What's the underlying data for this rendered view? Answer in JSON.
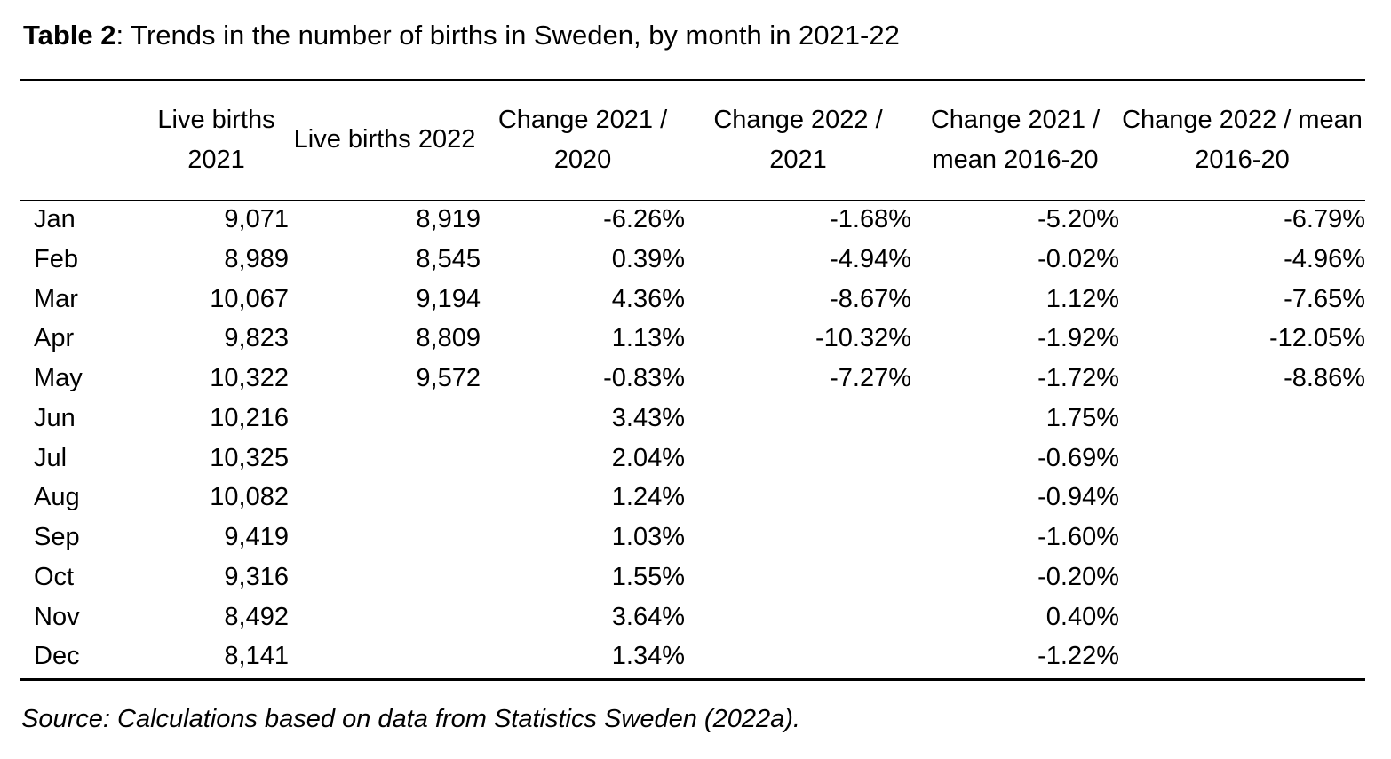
{
  "caption": {
    "label": "Table 2",
    "text": ": Trends in the number of births in Sweden, by month in 2021-22"
  },
  "table": {
    "headers": [
      "",
      "Live births 2021",
      "Live births 2022",
      "Change 2021 / 2020",
      "Change 2022 / 2021",
      "Change 2021 / mean 2016-20",
      "Change 2022 / mean 2016-20"
    ],
    "rows": [
      {
        "month": "Jan",
        "births_2021": "9,071",
        "births_2022": "8,919",
        "change_2021_2020": "-6.26%",
        "change_2022_2021": "-1.68%",
        "change_2021_mean": "-5.20%",
        "change_2022_mean": "-6.79%"
      },
      {
        "month": "Feb",
        "births_2021": "8,989",
        "births_2022": "8,545",
        "change_2021_2020": "0.39%",
        "change_2022_2021": "-4.94%",
        "change_2021_mean": "-0.02%",
        "change_2022_mean": "-4.96%"
      },
      {
        "month": "Mar",
        "births_2021": "10,067",
        "births_2022": "9,194",
        "change_2021_2020": "4.36%",
        "change_2022_2021": "-8.67%",
        "change_2021_mean": "1.12%",
        "change_2022_mean": "-7.65%"
      },
      {
        "month": "Apr",
        "births_2021": "9,823",
        "births_2022": "8,809",
        "change_2021_2020": "1.13%",
        "change_2022_2021": "-10.32%",
        "change_2021_mean": "-1.92%",
        "change_2022_mean": "-12.05%"
      },
      {
        "month": "May",
        "births_2021": "10,322",
        "births_2022": "9,572",
        "change_2021_2020": "-0.83%",
        "change_2022_2021": "-7.27%",
        "change_2021_mean": "-1.72%",
        "change_2022_mean": "-8.86%"
      },
      {
        "month": "Jun",
        "births_2021": "10,216",
        "births_2022": "",
        "change_2021_2020": "3.43%",
        "change_2022_2021": "",
        "change_2021_mean": "1.75%",
        "change_2022_mean": ""
      },
      {
        "month": "Jul",
        "births_2021": "10,325",
        "births_2022": "",
        "change_2021_2020": "2.04%",
        "change_2022_2021": "",
        "change_2021_mean": "-0.69%",
        "change_2022_mean": ""
      },
      {
        "month": "Aug",
        "births_2021": "10,082",
        "births_2022": "",
        "change_2021_2020": "1.24%",
        "change_2022_2021": "",
        "change_2021_mean": "-0.94%",
        "change_2022_mean": ""
      },
      {
        "month": "Sep",
        "births_2021": "9,419",
        "births_2022": "",
        "change_2021_2020": "1.03%",
        "change_2022_2021": "",
        "change_2021_mean": "-1.60%",
        "change_2022_mean": ""
      },
      {
        "month": "Oct",
        "births_2021": "9,316",
        "births_2022": "",
        "change_2021_2020": "1.55%",
        "change_2022_2021": "",
        "change_2021_mean": "-0.20%",
        "change_2022_mean": ""
      },
      {
        "month": "Nov",
        "births_2021": "8,492",
        "births_2022": "",
        "change_2021_2020": "3.64%",
        "change_2022_2021": "",
        "change_2021_mean": "0.40%",
        "change_2022_mean": ""
      },
      {
        "month": "Dec",
        "births_2021": "8,141",
        "births_2022": "",
        "change_2021_2020": "1.34%",
        "change_2022_2021": "",
        "change_2021_mean": "-1.22%",
        "change_2022_mean": ""
      }
    ]
  },
  "source": "Source: Calculations based on data from Statistics Sweden (2022a)."
}
